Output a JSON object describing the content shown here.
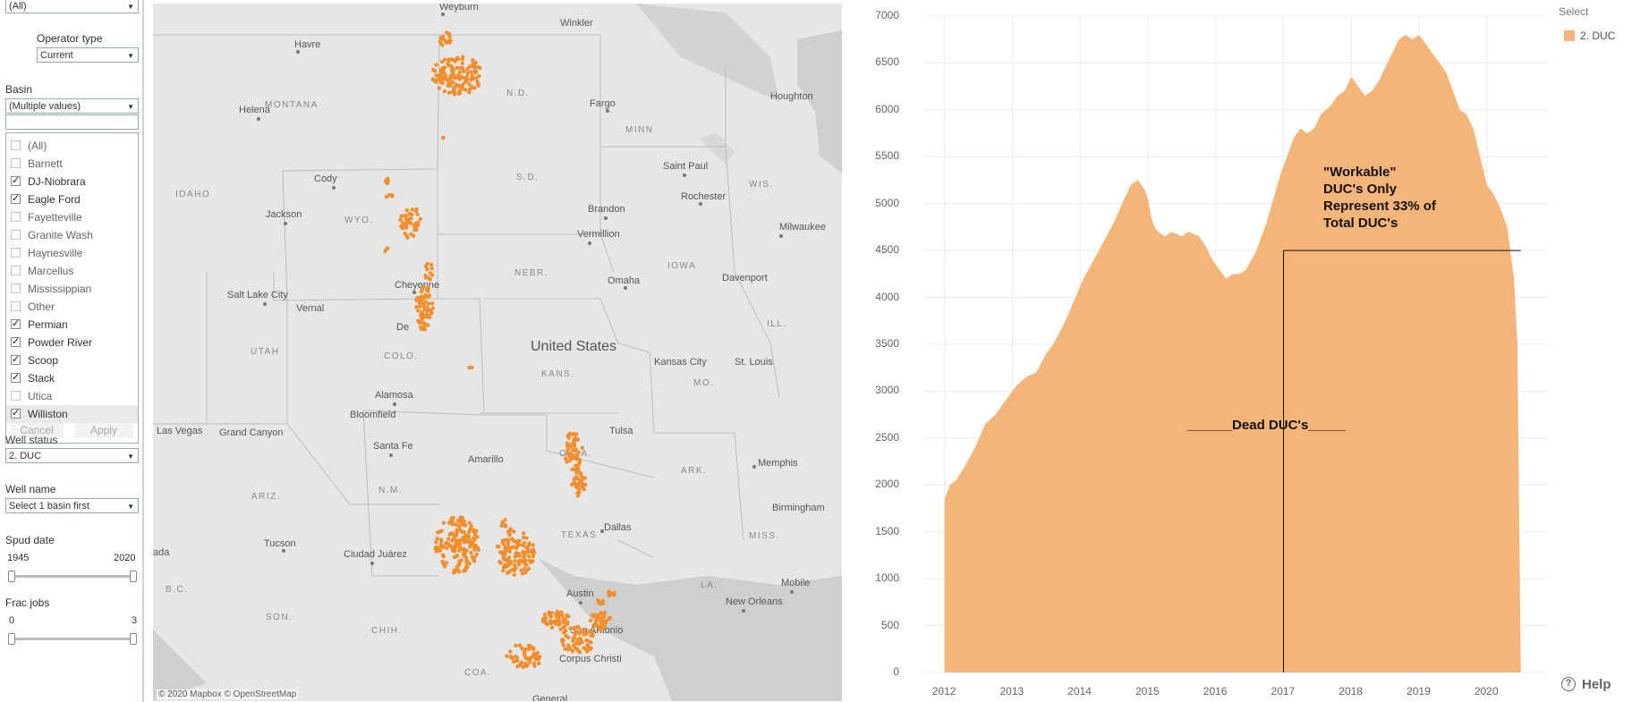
{
  "filters": {
    "top_select": "(All)",
    "operator_type": {
      "label": "Operator type",
      "value": "Current"
    },
    "basin": {
      "label": "Basin",
      "value": "(Multiple values)",
      "search": "",
      "items": [
        {
          "label": "(All)",
          "checked": false
        },
        {
          "label": "Barnett",
          "checked": false
        },
        {
          "label": "DJ-Niobrara",
          "checked": true
        },
        {
          "label": "Eagle Ford",
          "checked": true
        },
        {
          "label": "Fayetteville",
          "checked": false
        },
        {
          "label": "Granite Wash",
          "checked": false
        },
        {
          "label": "Haynesville",
          "checked": false
        },
        {
          "label": "Marcellus",
          "checked": false
        },
        {
          "label": "Mississippian",
          "checked": false
        },
        {
          "label": "Other",
          "checked": false
        },
        {
          "label": "Permian",
          "checked": true
        },
        {
          "label": "Powder River",
          "checked": true
        },
        {
          "label": "Scoop",
          "checked": true
        },
        {
          "label": "Stack",
          "checked": true
        },
        {
          "label": "Utica",
          "checked": false
        },
        {
          "label": "Williston",
          "checked": true
        }
      ],
      "cancel": "Cancel",
      "apply": "Apply"
    },
    "well_status": {
      "label": "Well status",
      "value": "2. DUC"
    },
    "well_name": {
      "label": "Well name",
      "value": "Select 1 basin first"
    },
    "spud_date": {
      "label": "Spud date",
      "min": "1945",
      "max": "2020"
    },
    "frac_jobs": {
      "label": "Frac jobs",
      "min": "0",
      "max": "3"
    }
  },
  "map": {
    "country": "United States",
    "attribution": "© 2020 Mapbox  © OpenStreetMap",
    "dot_color": "#f28e2b",
    "cities": [
      "Weyburn",
      "Winkler",
      "Havre",
      "Helena",
      "Fargo",
      "Houghton",
      "Saint Paul",
      "Rochester",
      "Cody",
      "Jackson",
      "Brandon",
      "Vermillion",
      "Milwaukee",
      "Salt Lake City",
      "Vernal",
      "Cheyenne",
      "De",
      "Omaha",
      "Davenport",
      "Kansas City",
      "St. Louis",
      "Alamosa",
      "Bloomfield",
      "Las Vegas",
      "Grand Canyon",
      "Santa Fe",
      "Amarillo",
      "Tulsa",
      "Memphis",
      "Dallas",
      "Birmingham",
      "Tucson",
      "Ciudad Juárez",
      "Austin",
      "Mobile",
      "New Orleans",
      "San Antonio",
      "Corpus Christi",
      "General",
      "ada"
    ],
    "states": [
      "MONTANA",
      "N.D.",
      "MINN",
      "IDAHO",
      "S.D.",
      "WIS.",
      "WYO.",
      "NEBR.",
      "IOWA",
      "ILL.",
      "UTAH",
      "COLO.",
      "KANS.",
      "MO.",
      "N.M.",
      "OKLA.",
      "ARK.",
      "ARIZ.",
      "TEXAS",
      "MISS.",
      "LA.",
      "SON.",
      "CHIH.",
      "COA.",
      "B.C."
    ]
  },
  "chart_data": {
    "type": "area",
    "title": "",
    "xlabel": "",
    "ylabel": "",
    "x_ticks": [
      "2012",
      "2013",
      "2014",
      "2015",
      "2016",
      "2017",
      "2018",
      "2019",
      "2020"
    ],
    "y_ticks": [
      "0",
      "500",
      "1000",
      "1500",
      "2000",
      "2500",
      "3000",
      "3500",
      "4000",
      "4500",
      "5000",
      "5500",
      "6000",
      "6500",
      "7000"
    ],
    "ylim": [
      0,
      7000
    ],
    "xlim": [
      2011.7,
      2020.9
    ],
    "grid": true,
    "legend_placement": "top-right",
    "color": "#f5b478",
    "series": [
      {
        "name": "2. DUC",
        "x": [
          2012.0,
          2012.08,
          2012.17,
          2012.3,
          2012.45,
          2012.6,
          2012.75,
          2012.9,
          2013.05,
          2013.2,
          2013.35,
          2013.5,
          2013.6,
          2013.75,
          2013.9,
          2014.05,
          2014.2,
          2014.35,
          2014.5,
          2014.65,
          2014.75,
          2014.85,
          2014.95,
          2015.0,
          2015.05,
          2015.1,
          2015.15,
          2015.25,
          2015.35,
          2015.5,
          2015.6,
          2015.75,
          2015.85,
          2015.95,
          2016.05,
          2016.15,
          2016.25,
          2016.35,
          2016.45,
          2016.6,
          2016.75,
          2016.85,
          2016.95,
          2017.05,
          2017.15,
          2017.25,
          2017.35,
          2017.45,
          2017.55,
          2017.7,
          2017.8,
          2017.9,
          2018.0,
          2018.1,
          2018.2,
          2018.3,
          2018.4,
          2018.5,
          2018.6,
          2018.7,
          2018.8,
          2018.9,
          2019.0,
          2019.1,
          2019.2,
          2019.3,
          2019.4,
          2019.5,
          2019.6,
          2019.7,
          2019.8,
          2019.9,
          2020.0,
          2020.1,
          2020.2,
          2020.3,
          2020.4,
          2020.45,
          2020.5
        ],
        "values": [
          1850,
          2000,
          2050,
          2200,
          2400,
          2650,
          2750,
          2900,
          3050,
          3150,
          3200,
          3400,
          3500,
          3700,
          3950,
          4200,
          4400,
          4600,
          4800,
          5050,
          5200,
          5250,
          5150,
          5050,
          4850,
          4750,
          4700,
          4650,
          4700,
          4650,
          4700,
          4650,
          4550,
          4400,
          4300,
          4200,
          4250,
          4250,
          4300,
          4500,
          4800,
          5050,
          5300,
          5500,
          5700,
          5800,
          5750,
          5800,
          5950,
          6050,
          6150,
          6200,
          6350,
          6250,
          6150,
          6200,
          6300,
          6450,
          6600,
          6750,
          6800,
          6750,
          6800,
          6700,
          6600,
          6500,
          6400,
          6200,
          6000,
          5950,
          5800,
          5500,
          5200,
          5100,
          4950,
          4750,
          4200,
          3500,
          0
        ]
      }
    ],
    "annotations": {
      "workable": "\"Workable\"\nDUC's Only\nRepresent 33% of\nTotal DUC's",
      "dead": "______Dead DUC's_____",
      "vline_x": 2017.0,
      "hline_y": 4500
    }
  },
  "legend": {
    "title": "Select",
    "item": "2. DUC",
    "color": "#f5b478"
  },
  "help": {
    "label": "Help"
  }
}
